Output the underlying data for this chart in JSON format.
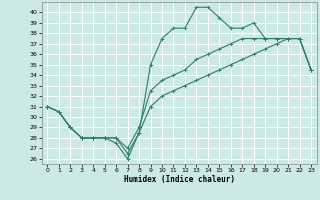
{
  "title": "",
  "xlabel": "Humidex (Indice chaleur)",
  "ylabel": "",
  "xlim": [
    -0.5,
    23.5
  ],
  "ylim": [
    25.5,
    41.0
  ],
  "xticks": [
    0,
    1,
    2,
    3,
    4,
    5,
    6,
    7,
    8,
    9,
    10,
    11,
    12,
    13,
    14,
    15,
    16,
    17,
    18,
    19,
    20,
    21,
    22,
    23
  ],
  "yticks": [
    26,
    27,
    28,
    29,
    30,
    31,
    32,
    33,
    34,
    35,
    36,
    37,
    38,
    39,
    40
  ],
  "bg_color": "#cce9e8",
  "grid_color": "#ffffff",
  "line_color": "#2e7d6e",
  "line1_x": [
    0,
    1,
    2,
    3,
    4,
    5,
    6,
    7,
    8,
    9,
    10,
    11,
    12,
    13,
    14,
    15,
    16,
    17,
    18,
    19,
    20,
    21,
    22,
    23
  ],
  "line1_y": [
    31.0,
    30.5,
    29.0,
    28.0,
    28.0,
    28.0,
    27.5,
    26.0,
    28.5,
    35.0,
    37.5,
    38.5,
    38.5,
    40.5,
    40.5,
    39.5,
    38.5,
    38.5,
    39.0,
    37.5,
    37.5,
    37.5,
    37.5,
    34.5
  ],
  "line2_x": [
    0,
    1,
    2,
    3,
    4,
    5,
    6,
    7,
    8,
    9,
    10,
    11,
    12,
    13,
    14,
    15,
    16,
    17,
    18,
    19,
    20,
    21,
    22,
    23
  ],
  "line2_y": [
    31.0,
    30.5,
    29.0,
    28.0,
    28.0,
    28.0,
    28.0,
    26.5,
    28.5,
    31.0,
    32.0,
    32.5,
    33.0,
    33.5,
    34.0,
    34.5,
    35.0,
    35.5,
    36.0,
    36.5,
    37.0,
    37.5,
    37.5,
    34.5
  ],
  "line3_x": [
    0,
    1,
    2,
    3,
    4,
    5,
    6,
    7,
    8,
    9,
    10,
    11,
    12,
    13,
    14,
    15,
    16,
    17,
    18,
    19,
    20,
    21,
    22,
    23
  ],
  "line3_y": [
    31.0,
    30.5,
    29.0,
    28.0,
    28.0,
    28.0,
    28.0,
    27.0,
    29.0,
    32.5,
    33.5,
    34.0,
    34.5,
    35.5,
    36.0,
    36.5,
    37.0,
    37.5,
    37.5,
    37.5,
    37.5,
    37.5,
    37.5,
    34.5
  ]
}
